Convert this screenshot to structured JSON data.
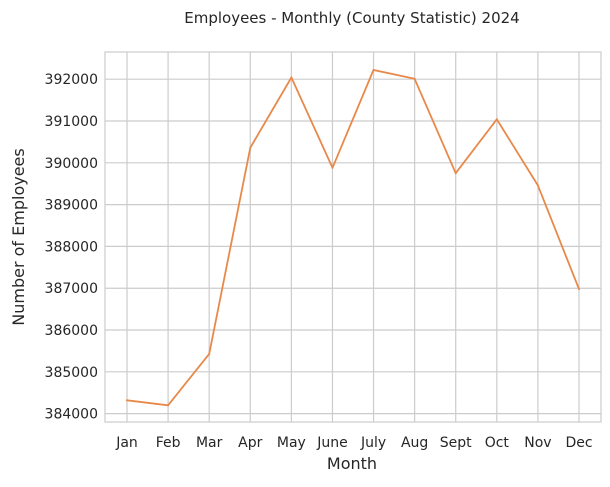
{
  "chart_data": {
    "type": "line",
    "title": "Employees - Monthly (County Statistic) 2024",
    "xlabel": "Month",
    "ylabel": "Number of Employees",
    "categories": [
      "Jan",
      "Feb",
      "Mar",
      "Apr",
      "May",
      "June",
      "July",
      "Aug",
      "Sept",
      "Oct",
      "Nov",
      "Dec"
    ],
    "series": [
      {
        "values": [
          384320,
          384200,
          385430,
          390360,
          392040,
          389880,
          392220,
          392010,
          389750,
          391040,
          389460,
          386980
        ],
        "color": "#e8894a"
      }
    ],
    "ylim": [
      383800,
      392650
    ],
    "yticks": [
      384000,
      385000,
      386000,
      387000,
      388000,
      389000,
      390000,
      391000,
      392000
    ],
    "grid": true,
    "legend": "none"
  }
}
